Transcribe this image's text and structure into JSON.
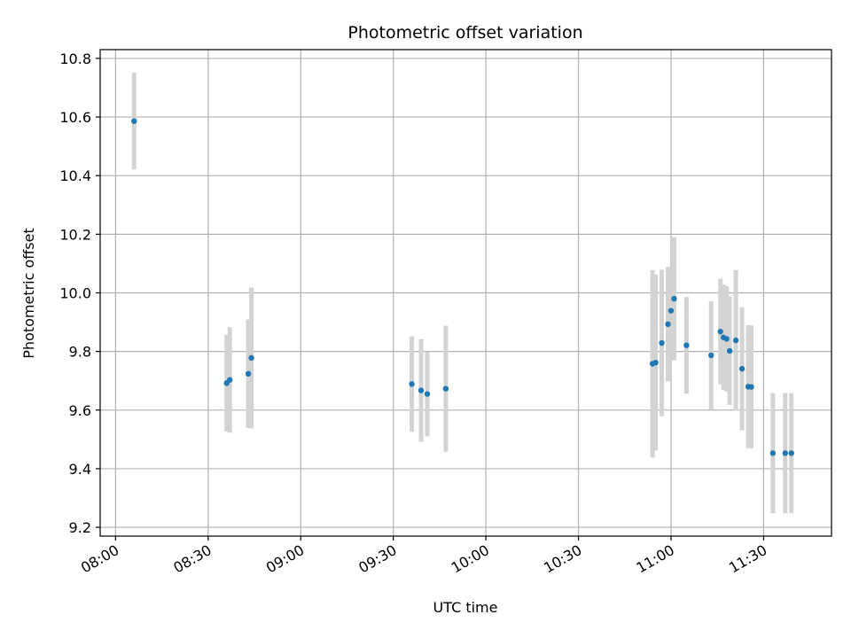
{
  "chart_data": {
    "type": "scatter",
    "title": "Photometric offset variation",
    "xlabel": "UTC time",
    "ylabel": "Photometric offset",
    "xlim": [
      "07:55",
      "11:52"
    ],
    "ylim": [
      9.17,
      10.83
    ],
    "x_ticks": [
      "08:00",
      "08:30",
      "09:00",
      "09:30",
      "10:00",
      "10:30",
      "11:00",
      "11:30"
    ],
    "y_ticks": [
      "9.2",
      "9.4",
      "9.6",
      "9.8",
      "10.0",
      "10.2",
      "10.4",
      "10.6",
      "10.8"
    ],
    "grid": true,
    "colors": {
      "point": "#1f77b4",
      "errorbar": "#d3d3d3",
      "grid": "#b0b0b0"
    },
    "series": [
      {
        "points": [
          {
            "t": "08:06",
            "y": 10.586,
            "err": 0.165
          },
          {
            "t": "08:36",
            "y": 9.692,
            "err": 0.165
          },
          {
            "t": "08:37",
            "y": 9.703,
            "err": 0.18
          },
          {
            "t": "08:43",
            "y": 9.724,
            "err": 0.185
          },
          {
            "t": "08:44",
            "y": 9.778,
            "err": 0.24
          },
          {
            "t": "09:36",
            "y": 9.689,
            "err": 0.163
          },
          {
            "t": "09:39",
            "y": 9.667,
            "err": 0.175
          },
          {
            "t": "09:41",
            "y": 9.655,
            "err": 0.145
          },
          {
            "t": "09:47",
            "y": 9.673,
            "err": 0.215
          },
          {
            "t": "10:54",
            "y": 9.758,
            "err": 0.32
          },
          {
            "t": "10:55",
            "y": 9.762,
            "err": 0.3
          },
          {
            "t": "10:57",
            "y": 9.829,
            "err": 0.25
          },
          {
            "t": "10:59",
            "y": 9.893,
            "err": 0.195
          },
          {
            "t": "11:00",
            "y": 9.939,
            "err": 0.15
          },
          {
            "t": "11:01",
            "y": 9.98,
            "err": 0.21
          },
          {
            "t": "11:05",
            "y": 9.821,
            "err": 0.165
          },
          {
            "t": "11:13",
            "y": 9.787,
            "err": 0.185
          },
          {
            "t": "11:16",
            "y": 9.868,
            "err": 0.18
          },
          {
            "t": "11:17",
            "y": 9.848,
            "err": 0.18
          },
          {
            "t": "11:18",
            "y": 9.843,
            "err": 0.18
          },
          {
            "t": "11:19",
            "y": 9.802,
            "err": 0.185
          },
          {
            "t": "11:21",
            "y": 9.838,
            "err": 0.24
          },
          {
            "t": "11:23",
            "y": 9.741,
            "err": 0.21
          },
          {
            "t": "11:25",
            "y": 9.68,
            "err": 0.21
          },
          {
            "t": "11:26",
            "y": 9.679,
            "err": 0.21
          },
          {
            "t": "11:33",
            "y": 9.453,
            "err": 0.205
          },
          {
            "t": "11:37",
            "y": 9.453,
            "err": 0.205
          },
          {
            "t": "11:39",
            "y": 9.453,
            "err": 0.205
          }
        ]
      }
    ]
  }
}
